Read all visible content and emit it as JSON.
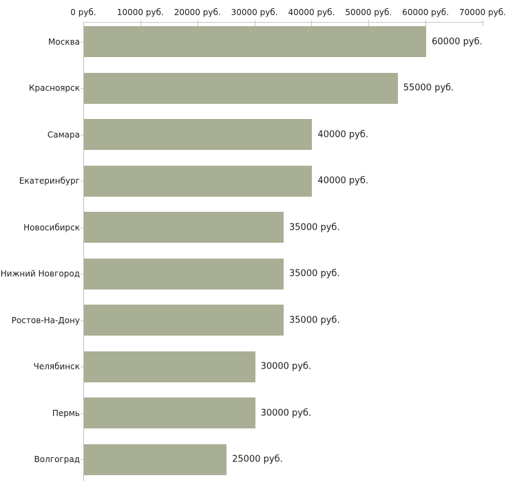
{
  "chart_data": {
    "type": "bar",
    "orientation": "horizontal",
    "title": "",
    "xlabel": "",
    "ylabel": "",
    "unit": "руб.",
    "categories": [
      "Москва",
      "Красноярск",
      "Самара",
      "Екатеринбург",
      "Новосибирск",
      "Нижний Новгород",
      "Ростов-На-Дону",
      "Челябинск",
      "Пермь",
      "Волгоград"
    ],
    "values": [
      60000,
      55000,
      40000,
      40000,
      35000,
      35000,
      35000,
      30000,
      30000,
      25000
    ],
    "value_labels": [
      "60000 руб.",
      "55000 руб.",
      "40000 руб.",
      "40000 руб.",
      "35000 руб.",
      "35000 руб.",
      "35000 руб.",
      "30000 руб.",
      "30000 руб.",
      "25000 руб."
    ],
    "x_ticks": [
      0,
      10000,
      20000,
      30000,
      40000,
      50000,
      60000,
      70000
    ],
    "x_tick_labels": [
      "0 руб.",
      "10000 руб.",
      "20000 руб.",
      "30000 руб.",
      "40000 руб.",
      "50000 руб.",
      "60000 руб.",
      "70000 руб."
    ],
    "xlim": [
      0,
      70000
    ],
    "grid": false,
    "legend": null,
    "colors": {
      "bar_fill": "#a9af94",
      "axis_line": "#c6c6c6",
      "tick_mark": "#c9c9a3",
      "text": "#1c1c1c",
      "background": "#ffffff"
    }
  }
}
